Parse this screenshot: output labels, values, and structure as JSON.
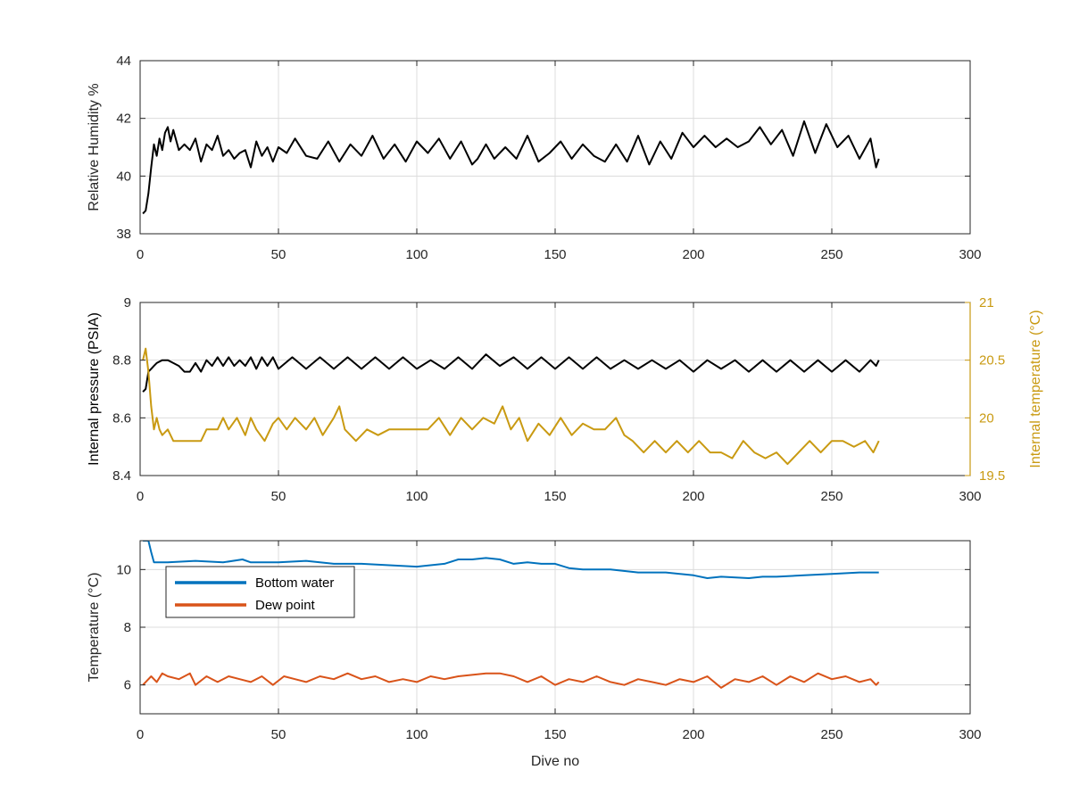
{
  "chart_data": [
    {
      "type": "line",
      "xlabel": "",
      "ylabel": "Relative Humidity %",
      "xlim": [
        0,
        300
      ],
      "ylim": [
        38,
        44
      ],
      "xticks": [
        "0",
        "50",
        "100",
        "150",
        "200",
        "250",
        "300"
      ],
      "yticks": [
        "38",
        "40",
        "42",
        "44"
      ],
      "grid": true,
      "series": [
        {
          "color": "#000000",
          "x": [
            1,
            2,
            3,
            4,
            5,
            6,
            7,
            8,
            9,
            10,
            11,
            12,
            14,
            16,
            18,
            20,
            22,
            24,
            26,
            28,
            30,
            32,
            34,
            36,
            38,
            40,
            42,
            44,
            46,
            48,
            50,
            53,
            56,
            60,
            64,
            68,
            72,
            76,
            80,
            84,
            88,
            92,
            96,
            100,
            104,
            108,
            112,
            116,
            120,
            122,
            125,
            128,
            132,
            136,
            140,
            144,
            148,
            152,
            156,
            160,
            164,
            168,
            172,
            176,
            180,
            184,
            188,
            192,
            196,
            200,
            204,
            208,
            212,
            216,
            220,
            224,
            228,
            232,
            236,
            240,
            244,
            248,
            252,
            256,
            260,
            264,
            266,
            267
          ],
          "y": [
            38.7,
            38.8,
            39.4,
            40.3,
            41.1,
            40.7,
            41.3,
            40.9,
            41.5,
            41.7,
            41.2,
            41.6,
            40.9,
            41.1,
            40.9,
            41.3,
            40.5,
            41.1,
            40.9,
            41.4,
            40.7,
            40.9,
            40.6,
            40.8,
            40.9,
            40.3,
            41.2,
            40.7,
            41.0,
            40.5,
            41.0,
            40.8,
            41.3,
            40.7,
            40.6,
            41.2,
            40.5,
            41.1,
            40.7,
            41.4,
            40.6,
            41.1,
            40.5,
            41.2,
            40.8,
            41.3,
            40.6,
            41.2,
            40.4,
            40.6,
            41.1,
            40.6,
            41.0,
            40.6,
            41.4,
            40.5,
            40.8,
            41.2,
            40.6,
            41.1,
            40.7,
            40.5,
            41.1,
            40.5,
            41.4,
            40.4,
            41.2,
            40.6,
            41.5,
            41.0,
            41.4,
            41.0,
            41.3,
            41.0,
            41.2,
            41.7,
            41.1,
            41.6,
            40.7,
            41.9,
            40.8,
            41.8,
            41.0,
            41.4,
            40.6,
            41.3,
            40.3,
            40.6
          ]
        }
      ]
    },
    {
      "type": "line",
      "xlabel": "",
      "ylabel": "Internal pressure (PSIA)",
      "ylabel_right": "Internal temperature (°C)",
      "xlim": [
        0,
        300
      ],
      "ylim": [
        8.4,
        9
      ],
      "ylim_right": [
        19.5,
        21
      ],
      "xticks": [
        "0",
        "50",
        "100",
        "150",
        "200",
        "250",
        "300"
      ],
      "yticks": [
        "8.4",
        "8.6",
        "8.8",
        "9"
      ],
      "yticks_right": [
        "19.5",
        "20",
        "20.5",
        "21"
      ],
      "grid": true,
      "series": [
        {
          "axis": "left",
          "color": "#000000",
          "x": [
            1,
            2,
            3,
            4,
            5,
            6,
            8,
            10,
            12,
            14,
            16,
            18,
            20,
            22,
            24,
            26,
            28,
            30,
            32,
            34,
            36,
            38,
            40,
            42,
            44,
            46,
            48,
            50,
            55,
            60,
            65,
            70,
            75,
            80,
            85,
            90,
            95,
            100,
            105,
            110,
            115,
            120,
            125,
            130,
            135,
            140,
            145,
            150,
            155,
            160,
            165,
            170,
            175,
            180,
            185,
            190,
            195,
            200,
            205,
            210,
            215,
            220,
            225,
            230,
            235,
            240,
            245,
            250,
            255,
            260,
            264,
            266,
            267
          ],
          "y": [
            8.69,
            8.7,
            8.76,
            8.77,
            8.78,
            8.79,
            8.8,
            8.8,
            8.79,
            8.78,
            8.76,
            8.76,
            8.79,
            8.76,
            8.8,
            8.78,
            8.81,
            8.78,
            8.81,
            8.78,
            8.8,
            8.78,
            8.81,
            8.77,
            8.81,
            8.78,
            8.81,
            8.77,
            8.81,
            8.77,
            8.81,
            8.77,
            8.81,
            8.77,
            8.81,
            8.77,
            8.81,
            8.77,
            8.8,
            8.77,
            8.81,
            8.77,
            8.82,
            8.78,
            8.81,
            8.77,
            8.81,
            8.77,
            8.81,
            8.77,
            8.81,
            8.77,
            8.8,
            8.77,
            8.8,
            8.77,
            8.8,
            8.76,
            8.8,
            8.77,
            8.8,
            8.76,
            8.8,
            8.76,
            8.8,
            8.76,
            8.8,
            8.76,
            8.8,
            8.76,
            8.8,
            8.78,
            8.8
          ]
        },
        {
          "axis": "right",
          "color": "#C99A12",
          "x": [
            1,
            2,
            3,
            4,
            5,
            6,
            7,
            8,
            10,
            12,
            14,
            16,
            18,
            20,
            22,
            24,
            26,
            28,
            30,
            32,
            35,
            38,
            40,
            42,
            45,
            48,
            50,
            53,
            56,
            60,
            63,
            66,
            70,
            72,
            74,
            78,
            82,
            86,
            90,
            95,
            100,
            104,
            108,
            112,
            116,
            120,
            124,
            128,
            131,
            134,
            137,
            140,
            144,
            148,
            152,
            156,
            160,
            164,
            168,
            172,
            175,
            178,
            182,
            186,
            190,
            194,
            198,
            202,
            206,
            210,
            214,
            218,
            222,
            226,
            230,
            234,
            238,
            242,
            246,
            250,
            254,
            258,
            262,
            265,
            267
          ],
          "y": [
            20.5,
            20.6,
            20.4,
            20.1,
            19.9,
            20.0,
            19.9,
            19.85,
            19.9,
            19.8,
            19.8,
            19.8,
            19.8,
            19.8,
            19.8,
            19.9,
            19.9,
            19.9,
            20.0,
            19.9,
            20.0,
            19.85,
            20.0,
            19.9,
            19.8,
            19.95,
            20.0,
            19.9,
            20.0,
            19.9,
            20.0,
            19.85,
            20.0,
            20.1,
            19.9,
            19.8,
            19.9,
            19.85,
            19.9,
            19.9,
            19.9,
            19.9,
            20.0,
            19.85,
            20.0,
            19.9,
            20.0,
            19.95,
            20.1,
            19.9,
            20.0,
            19.8,
            19.95,
            19.85,
            20.0,
            19.85,
            19.95,
            19.9,
            19.9,
            20.0,
            19.85,
            19.8,
            19.7,
            19.8,
            19.7,
            19.8,
            19.7,
            19.8,
            19.7,
            19.7,
            19.65,
            19.8,
            19.7,
            19.65,
            19.7,
            19.6,
            19.7,
            19.8,
            19.7,
            19.8,
            19.8,
            19.75,
            19.8,
            19.7,
            19.8
          ]
        }
      ]
    },
    {
      "type": "line",
      "xlabel": "Dive no",
      "ylabel": "Temperature (°C)",
      "xlim": [
        0,
        300
      ],
      "ylim": [
        5,
        11
      ],
      "xticks": [
        "0",
        "50",
        "100",
        "150",
        "200",
        "250",
        "300"
      ],
      "yticks": [
        "6",
        "8",
        "10"
      ],
      "grid": true,
      "legend": {
        "placement": "top-left"
      },
      "series": [
        {
          "name": "Bottom water",
          "color": "#0072BD",
          "x": [
            1,
            2,
            3,
            4,
            5,
            10,
            20,
            30,
            37,
            40,
            50,
            60,
            70,
            80,
            90,
            100,
            110,
            115,
            120,
            125,
            130,
            135,
            140,
            145,
            150,
            155,
            160,
            170,
            180,
            190,
            200,
            205,
            210,
            220,
            225,
            230,
            240,
            250,
            260,
            267
          ],
          "y": [
            11.0,
            11.0,
            11.0,
            10.6,
            10.25,
            10.25,
            10.3,
            10.25,
            10.35,
            10.25,
            10.25,
            10.3,
            10.2,
            10.2,
            10.15,
            10.1,
            10.2,
            10.35,
            10.35,
            10.4,
            10.35,
            10.2,
            10.25,
            10.2,
            10.2,
            10.05,
            10.0,
            10.0,
            9.9,
            9.9,
            9.8,
            9.7,
            9.75,
            9.7,
            9.75,
            9.75,
            9.8,
            9.85,
            9.9,
            9.9
          ]
        },
        {
          "name": "Dew point",
          "color": "#D95319",
          "x": [
            1,
            4,
            6,
            8,
            10,
            14,
            18,
            20,
            24,
            28,
            32,
            36,
            40,
            44,
            48,
            52,
            56,
            60,
            65,
            70,
            75,
            80,
            85,
            90,
            95,
            100,
            105,
            110,
            115,
            120,
            125,
            130,
            135,
            140,
            145,
            150,
            155,
            160,
            165,
            170,
            175,
            180,
            185,
            190,
            195,
            200,
            205,
            210,
            215,
            220,
            225,
            230,
            235,
            240,
            245,
            250,
            255,
            260,
            264,
            266,
            267
          ],
          "y": [
            6.0,
            6.3,
            6.1,
            6.4,
            6.3,
            6.2,
            6.4,
            6.0,
            6.3,
            6.1,
            6.3,
            6.2,
            6.1,
            6.3,
            6.0,
            6.3,
            6.2,
            6.1,
            6.3,
            6.2,
            6.4,
            6.2,
            6.3,
            6.1,
            6.2,
            6.1,
            6.3,
            6.2,
            6.3,
            6.35,
            6.4,
            6.4,
            6.3,
            6.1,
            6.3,
            6.0,
            6.2,
            6.1,
            6.3,
            6.1,
            6.0,
            6.2,
            6.1,
            6.0,
            6.2,
            6.1,
            6.3,
            5.9,
            6.2,
            6.1,
            6.3,
            6.0,
            6.3,
            6.1,
            6.4,
            6.2,
            6.3,
            6.1,
            6.2,
            6.0,
            6.1
          ]
        }
      ]
    }
  ]
}
